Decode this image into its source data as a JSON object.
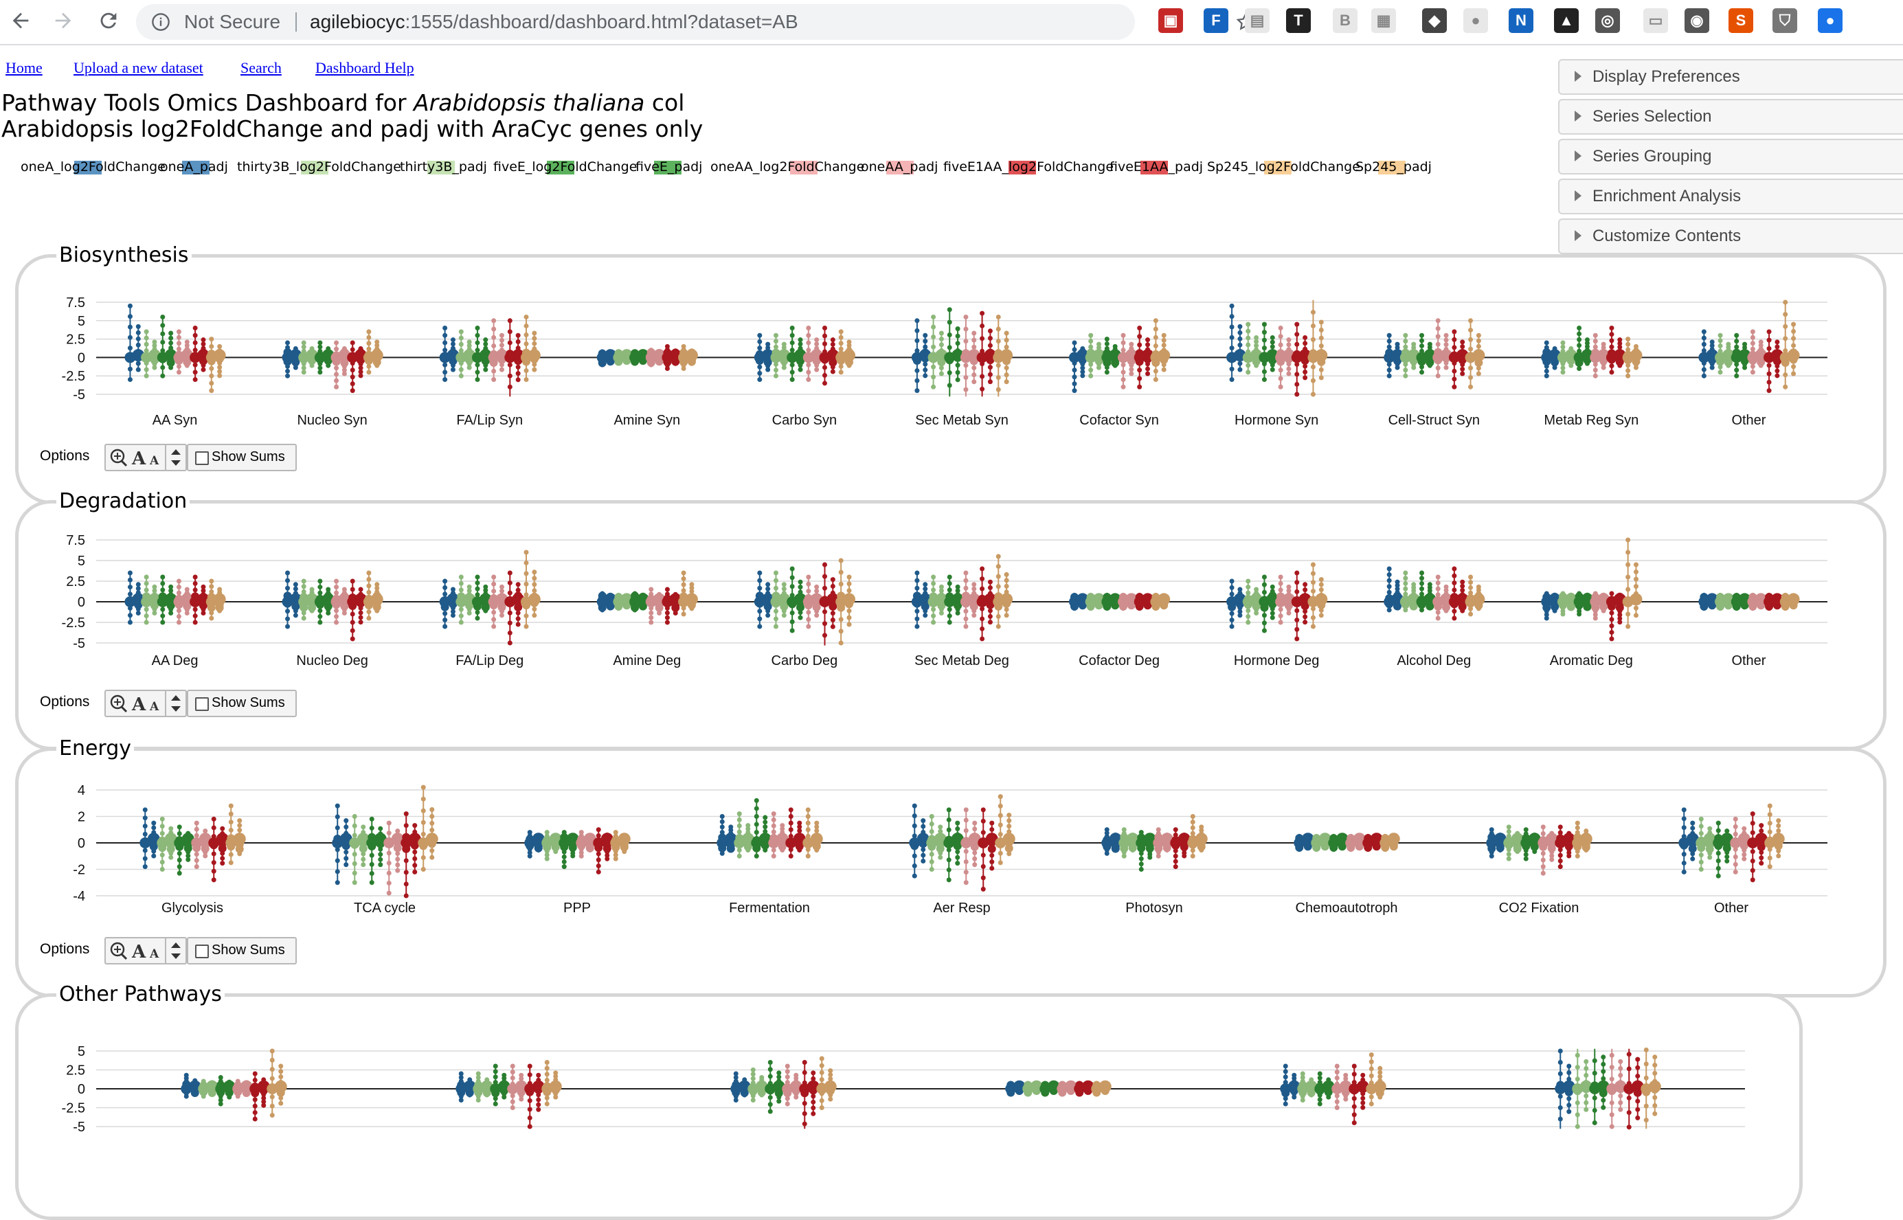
{
  "browser": {
    "security_label": "Not Secure",
    "url_host": "agilebiocyc",
    "url_rest": ":1555/dashboard/dashboard.html?dataset=AB",
    "extensions": [
      "mendeley-icon",
      "f-icon",
      "doc-icon",
      "tex-icon",
      "b-icon",
      "grey-icon",
      "shield-icon",
      "circle-icon",
      "nb-icon",
      "lock-icon",
      "clock-icon",
      "speech-icon",
      "bulb-icon",
      "sc-icon",
      "shield2-icon",
      "zoom-icon"
    ]
  },
  "nav": {
    "links": [
      "Home",
      "Upload a new dataset",
      "Search",
      "Dashboard Help"
    ]
  },
  "header": {
    "title_prefix": "Pathway Tools Omics Dashboard for ",
    "title_organism": "Arabidopsis thaliana",
    "title_suffix": " col",
    "subtitle": "Arabidopsis log2FoldChange and padj with AraCyc genes only"
  },
  "legend": [
    {
      "label": "oneA_log2FoldChange",
      "color": "#5b93c2"
    },
    {
      "label": "oneA_padj",
      "color": "#5b93c2"
    },
    {
      "label": "thirty3B_log2FoldChange",
      "color": "#c6e3b4"
    },
    {
      "label": "thirty3B_padj",
      "color": "#c6e3b4"
    },
    {
      "label": "fiveE_log2FoldChange",
      "color": "#5cb25d"
    },
    {
      "label": "fiveE_padj",
      "color": "#5cb25d"
    },
    {
      "label": "oneAA_log2FoldChange",
      "color": "#f4b3b4"
    },
    {
      "label": "oneAA_padj",
      "color": "#f4b3b4"
    },
    {
      "label": "fiveE1AA_log2FoldChange",
      "color": "#e05255"
    },
    {
      "label": "fiveE1AA_padj",
      "color": "#e05255"
    },
    {
      "label": "Sp245_log2FoldChange",
      "color": "#f7cf97"
    },
    {
      "label": "Sp245_padj",
      "color": "#f7cf97"
    }
  ],
  "sidebar": {
    "sections": [
      "Display Preferences",
      "Series Selection",
      "Series Grouping",
      "Enrichment Analysis",
      "Customize Contents"
    ]
  },
  "controls": {
    "options_label": "Options",
    "show_sums_label": "Show Sums",
    "show_sums_checked": false
  },
  "series_colors": [
    "#1f5a8a",
    "#8cb87a",
    "#2a7e2f",
    "#d08d8d",
    "#a8171e",
    "#c99a63"
  ],
  "chart_data": [
    {
      "type": "strip",
      "title": "Biosynthesis",
      "ylim": [
        -5,
        7.5
      ],
      "yticks": [
        "7.5",
        "5",
        "2.5",
        "0",
        "-2.5",
        "-5"
      ],
      "ytick_values": [
        7.5,
        5,
        2.5,
        0,
        -2.5,
        -5
      ],
      "categories": [
        "AA Syn",
        "Nucleo Syn",
        "FA/Lip Syn",
        "Amine Syn",
        "Carbo Syn",
        "Sec Metab Syn",
        "Cofactor Syn",
        "Hormone Syn",
        "Cell-Struct Syn",
        "Metab Reg Syn",
        "Other"
      ],
      "series_ranges": [
        [
          [
            -3,
            7
          ],
          [
            -2.5,
            3.5
          ],
          [
            -2.5,
            5.5
          ],
          [
            -2,
            3.5
          ],
          [
            -3,
            4
          ],
          [
            -4.5,
            2.5
          ]
        ],
        [
          [
            -2.5,
            2
          ],
          [
            -2,
            2
          ],
          [
            -2,
            2
          ],
          [
            -4,
            2
          ],
          [
            -4.5,
            2
          ],
          [
            -2,
            3.5
          ]
        ],
        [
          [
            -3,
            4
          ],
          [
            -2.5,
            3.5
          ],
          [
            -3,
            4
          ],
          [
            -3,
            5
          ],
          [
            -5.5,
            5
          ],
          [
            -3,
            5.5
          ]
        ],
        [
          [
            -1,
            0.8
          ],
          [
            -0.8,
            0.8
          ],
          [
            -0.8,
            0.8
          ],
          [
            -1,
            1
          ],
          [
            -1.5,
            1.5
          ],
          [
            -1.5,
            1.5
          ]
        ],
        [
          [
            -3,
            3
          ],
          [
            -2.5,
            3
          ],
          [
            -3,
            4
          ],
          [
            -3,
            4
          ],
          [
            -3.5,
            4
          ],
          [
            -2,
            3.5
          ]
        ],
        [
          [
            -4.5,
            5
          ],
          [
            -4,
            5.5
          ],
          [
            -5.5,
            6.5
          ],
          [
            -6,
            5.5
          ],
          [
            -6,
            6
          ],
          [
            -6,
            5.5
          ]
        ],
        [
          [
            -4.5,
            2
          ],
          [
            -2.5,
            3
          ],
          [
            -2,
            2.5
          ],
          [
            -4,
            3
          ],
          [
            -4,
            4
          ],
          [
            -3,
            5
          ]
        ],
        [
          [
            -3,
            7
          ],
          [
            -2,
            4.5
          ],
          [
            -3,
            4.5
          ],
          [
            -4,
            4
          ],
          [
            -5,
            4.5
          ],
          [
            -5,
            8
          ]
        ],
        [
          [
            -2.5,
            3
          ],
          [
            -2.5,
            3
          ],
          [
            -2,
            3
          ],
          [
            -2.5,
            5
          ],
          [
            -4,
            3.5
          ],
          [
            -4,
            5
          ]
        ],
        [
          [
            -2.5,
            2
          ],
          [
            -2,
            2
          ],
          [
            -1.5,
            4
          ],
          [
            -2.5,
            3
          ],
          [
            -2,
            4
          ],
          [
            -2.5,
            2.5
          ]
        ],
        [
          [
            -2.5,
            3.5
          ],
          [
            -2,
            3
          ],
          [
            -2.5,
            3
          ],
          [
            -2,
            3.5
          ],
          [
            -4.5,
            3.5
          ],
          [
            -4,
            7.5
          ]
        ]
      ]
    },
    {
      "type": "strip",
      "title": "Degradation",
      "ylim": [
        -5,
        7.5
      ],
      "yticks": [
        "7.5",
        "5",
        "2.5",
        "0",
        "-2.5",
        "-5"
      ],
      "ytick_values": [
        7.5,
        5,
        2.5,
        0,
        -2.5,
        -5
      ],
      "categories": [
        "AA Deg",
        "Nucleo Deg",
        "FA/Lip Deg",
        "Amine Deg",
        "Carbo Deg",
        "Sec Metab Deg",
        "Cofactor Deg",
        "Hormone Deg",
        "Alcohol Deg",
        "Aromatic Deg",
        "Other"
      ],
      "series_ranges": [
        [
          [
            -2.5,
            3.5
          ],
          [
            -2.5,
            3
          ],
          [
            -2.5,
            3
          ],
          [
            -2.5,
            2.5
          ],
          [
            -2.5,
            3
          ],
          [
            -2,
            2.5
          ]
        ],
        [
          [
            -3,
            3.5
          ],
          [
            -2,
            2.5
          ],
          [
            -2.5,
            2.5
          ],
          [
            -2.5,
            2.5
          ],
          [
            -4.5,
            2.5
          ],
          [
            -2,
            3.5
          ]
        ],
        [
          [
            -3,
            2.5
          ],
          [
            -2.5,
            3
          ],
          [
            -2,
            3
          ],
          [
            -3,
            3
          ],
          [
            -5,
            3.5
          ],
          [
            -3,
            6
          ]
        ],
        [
          [
            -1,
            1
          ],
          [
            -0.8,
            0.8
          ],
          [
            -1,
            1
          ],
          [
            -2.5,
            1.5
          ],
          [
            -2.5,
            1.5
          ],
          [
            -1.5,
            3.5
          ]
        ],
        [
          [
            -3,
            3.5
          ],
          [
            -3,
            3.5
          ],
          [
            -3.5,
            4
          ],
          [
            -3,
            3
          ],
          [
            -5.5,
            4.5
          ],
          [
            -5,
            5
          ]
        ],
        [
          [
            -3,
            3.5
          ],
          [
            -2.5,
            3
          ],
          [
            -2.5,
            3
          ],
          [
            -3,
            3.5
          ],
          [
            -4.5,
            4
          ],
          [
            -3,
            5.5
          ]
        ],
        [
          [
            -0.8,
            0.8
          ],
          [
            -0.8,
            0.8
          ],
          [
            -0.8,
            0.8
          ],
          [
            -0.8,
            0.8
          ],
          [
            -0.8,
            0.8
          ],
          [
            -0.8,
            0.8
          ]
        ],
        [
          [
            -3,
            2.5
          ],
          [
            -2.5,
            2.5
          ],
          [
            -3.5,
            3
          ],
          [
            -2.5,
            3
          ],
          [
            -4.5,
            3.5
          ],
          [
            -3,
            4.5
          ]
        ],
        [
          [
            -1,
            4
          ],
          [
            -1,
            3.5
          ],
          [
            -1,
            3.5
          ],
          [
            -2,
            3
          ],
          [
            -2,
            4
          ],
          [
            -1.5,
            3
          ]
        ],
        [
          [
            -2,
            1
          ],
          [
            -1.5,
            1
          ],
          [
            -1.5,
            1
          ],
          [
            -2,
            1
          ],
          [
            -4.5,
            1
          ],
          [
            -3,
            7.5
          ]
        ],
        [
          [
            -0.8,
            0.8
          ],
          [
            -0.8,
            0.8
          ],
          [
            -0.8,
            0.8
          ],
          [
            -0.8,
            0.8
          ],
          [
            -0.8,
            0.8
          ],
          [
            -0.8,
            0.8
          ]
        ]
      ]
    },
    {
      "type": "strip",
      "title": "Energy",
      "ylim": [
        -4,
        4
      ],
      "yticks": [
        "4",
        "2",
        "0",
        "-2",
        "-4"
      ],
      "ytick_values": [
        4,
        2,
        0,
        -2,
        -4
      ],
      "categories": [
        "Glycolysis",
        "TCA cycle",
        "PPP",
        "Fermentation",
        "Aer Resp",
        "Photosyn",
        "Chemoautotroph",
        "CO2 Fixation",
        "Other"
      ],
      "series_ranges": [
        [
          [
            -1.8,
            2.5
          ],
          [
            -2,
            1.8
          ],
          [
            -2.3,
            1.2
          ],
          [
            -1.8,
            1.5
          ],
          [
            -2.8,
            1.8
          ],
          [
            -1.5,
            2.8
          ]
        ],
        [
          [
            -3,
            2.8
          ],
          [
            -3,
            2
          ],
          [
            -3,
            1.8
          ],
          [
            -3.8,
            1.5
          ],
          [
            -4,
            2.2
          ],
          [
            -2,
            4.2
          ]
        ],
        [
          [
            -1,
            0.8
          ],
          [
            -1.2,
            0.8
          ],
          [
            -1.8,
            0.8
          ],
          [
            -1,
            0.8
          ],
          [
            -2.2,
            1
          ],
          [
            -1.2,
            0.8
          ]
        ],
        [
          [
            -0.8,
            2
          ],
          [
            -1,
            2.2
          ],
          [
            -1,
            3.2
          ],
          [
            -1,
            2.2
          ],
          [
            -1,
            2.5
          ],
          [
            -1,
            2.5
          ]
        ],
        [
          [
            -2.5,
            2.8
          ],
          [
            -2,
            2
          ],
          [
            -2.8,
            2.5
          ],
          [
            -3,
            2.5
          ],
          [
            -3.5,
            2.5
          ],
          [
            -1.5,
            3.5
          ]
        ],
        [
          [
            -0.8,
            1
          ],
          [
            -1,
            1
          ],
          [
            -2,
            0.8
          ],
          [
            -1,
            1
          ],
          [
            -1.8,
            1
          ],
          [
            -1,
            2
          ]
        ],
        [
          [
            -0.5,
            0.5
          ],
          [
            -0.5,
            0.5
          ],
          [
            -0.5,
            0.5
          ],
          [
            -0.5,
            0.5
          ],
          [
            -0.5,
            0.5
          ],
          [
            -0.5,
            0.5
          ]
        ],
        [
          [
            -1,
            1
          ],
          [
            -1.2,
            1.2
          ],
          [
            -1.2,
            1
          ],
          [
            -2.3,
            1.2
          ],
          [
            -1.8,
            1.2
          ],
          [
            -1,
            1.5
          ]
        ],
        [
          [
            -2.2,
            2.5
          ],
          [
            -2,
            1.8
          ],
          [
            -2.5,
            1.5
          ],
          [
            -2.2,
            1.8
          ],
          [
            -2.8,
            2.2
          ],
          [
            -1.8,
            2.8
          ]
        ]
      ]
    },
    {
      "type": "strip",
      "title": "Other Pathways",
      "ylim": [
        -5,
        5
      ],
      "yticks": [
        "5",
        "2.5",
        "0",
        "-2.5",
        "-5"
      ],
      "ytick_values": [
        5,
        2.5,
        0,
        -2.5,
        -5
      ],
      "categories": [
        "",
        "",
        "",
        "",
        "",
        ""
      ],
      "series_ranges": [
        [
          [
            -1,
            1.8
          ],
          [
            -1,
            1
          ],
          [
            -2,
            1.5
          ],
          [
            -1,
            1
          ],
          [
            -4,
            2
          ],
          [
            -3.5,
            5
          ]
        ],
        [
          [
            -1.5,
            2
          ],
          [
            -1.5,
            2
          ],
          [
            -2,
            3
          ],
          [
            -2.5,
            3
          ],
          [
            -5,
            3
          ],
          [
            -2,
            3.5
          ]
        ],
        [
          [
            -1.5,
            2
          ],
          [
            -1.5,
            2.5
          ],
          [
            -3,
            3.5
          ],
          [
            -2,
            3
          ],
          [
            -6,
            3.5
          ],
          [
            -2.5,
            4
          ]
        ],
        [
          [
            -0.5,
            0.5
          ],
          [
            -0.5,
            0.5
          ],
          [
            -0.5,
            0.5
          ],
          [
            -0.5,
            0.5
          ],
          [
            -0.5,
            0.5
          ],
          [
            -0.5,
            0.5
          ]
        ],
        [
          [
            -2,
            3
          ],
          [
            -1.5,
            2
          ],
          [
            -2,
            2
          ],
          [
            -2.5,
            3
          ],
          [
            -4.5,
            3
          ],
          [
            -2,
            4.5
          ]
        ],
        [
          [
            -5.5,
            5
          ],
          [
            -5,
            6
          ],
          [
            -4.5,
            7
          ],
          [
            -5,
            6
          ],
          [
            -7,
            6.5
          ],
          [
            -6,
            7
          ]
        ]
      ]
    }
  ]
}
